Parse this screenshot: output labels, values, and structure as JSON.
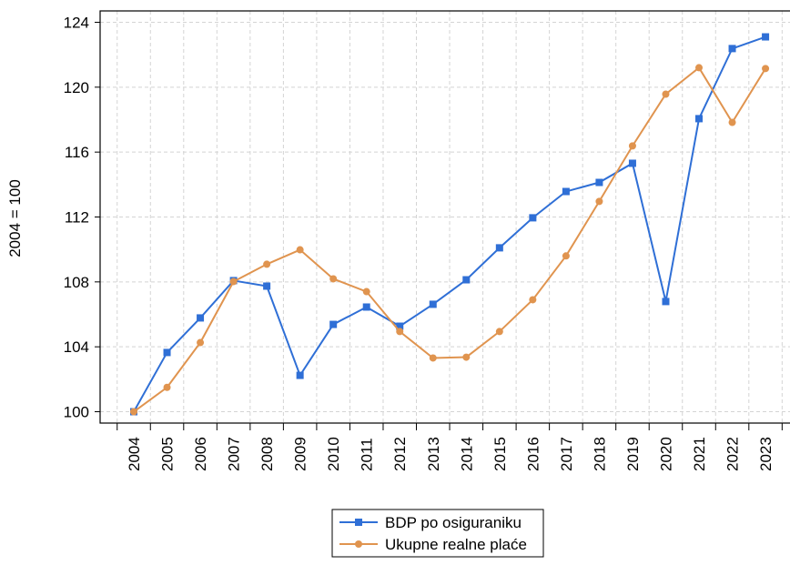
{
  "chart_data": {
    "type": "line",
    "y_label": "2004 = 100",
    "categories": [
      "2004",
      "2005",
      "2006",
      "2007",
      "2008",
      "2009",
      "2010",
      "2011",
      "2012",
      "2013",
      "2014",
      "2015",
      "2016",
      "2017",
      "2018",
      "2019",
      "2020",
      "2021",
      "2022",
      "2023"
    ],
    "series": [
      {
        "name": "BDP po osiguraniku",
        "color": "#2f6fd6",
        "marker": "square",
        "values": [
          100,
          103.65,
          105.78,
          108.08,
          107.74,
          102.24,
          105.38,
          106.45,
          105.27,
          106.62,
          108.13,
          110.1,
          111.95,
          113.57,
          114.13,
          115.31,
          106.79,
          118.06,
          122.38,
          123.1
        ]
      },
      {
        "name": "Ukupne realne plaće",
        "color": "#e0944f",
        "marker": "circle",
        "values": [
          100,
          101.5,
          104.26,
          108.02,
          109.09,
          109.98,
          108.19,
          107.4,
          104.94,
          103.31,
          103.36,
          104.94,
          106.9,
          109.6,
          112.96,
          116.38,
          119.57,
          121.2,
          117.83,
          121.15
        ]
      }
    ],
    "ylim": [
      99.3,
      124.7
    ],
    "yticks": [
      100,
      104,
      108,
      112,
      116,
      120,
      124
    ],
    "grid": true
  }
}
